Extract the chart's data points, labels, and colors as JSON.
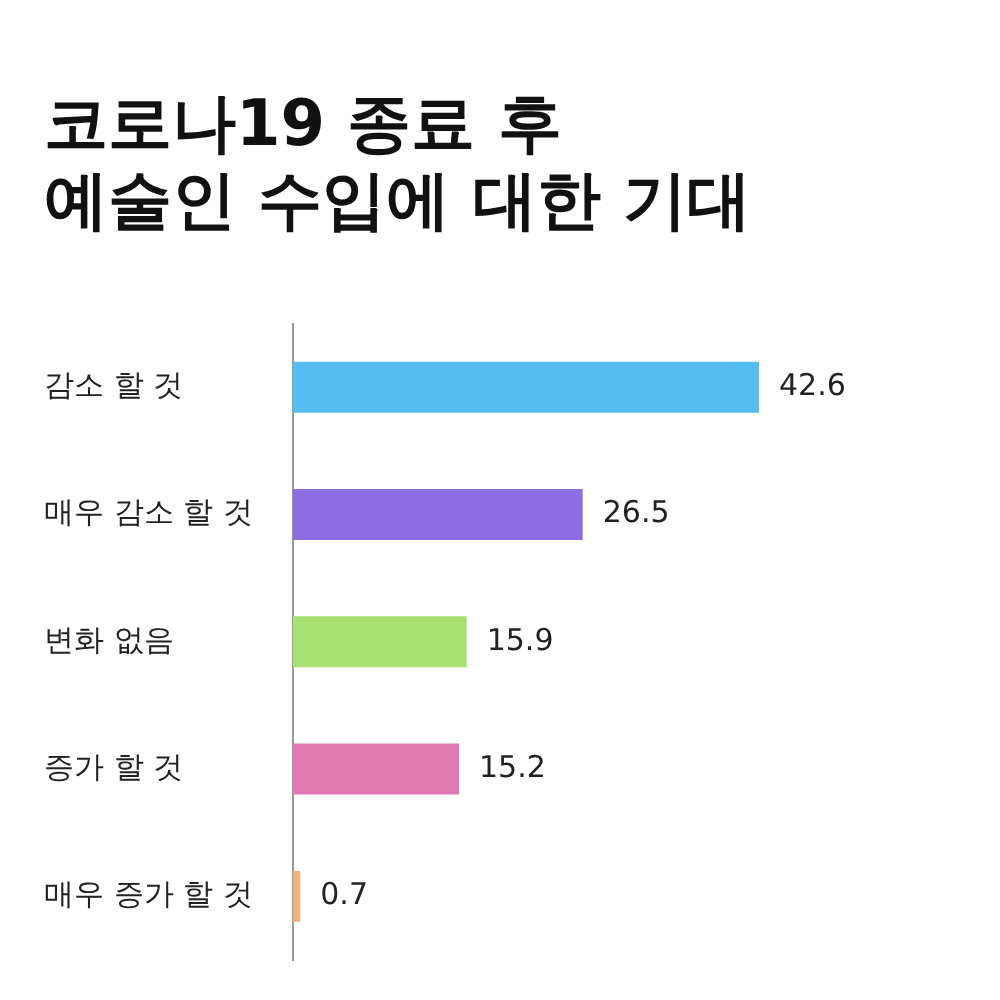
{
  "chart_data": {
    "type": "bar",
    "orientation": "horizontal",
    "title": "코로나19 종료 후\n예술인 수입에 대한 기대",
    "categories": [
      "감소 할 것",
      "매우 감소 할 것",
      "변화 없음",
      "증가 할 것",
      "매우 증가 할 것"
    ],
    "values": [
      42.6,
      26.5,
      15.9,
      15.2,
      0.7
    ],
    "colors": [
      "#56bdf0",
      "#8d6ee0",
      "#a6e070",
      "#e07ab0",
      "#f0b07c"
    ],
    "data_labels": true,
    "legend": false
  }
}
